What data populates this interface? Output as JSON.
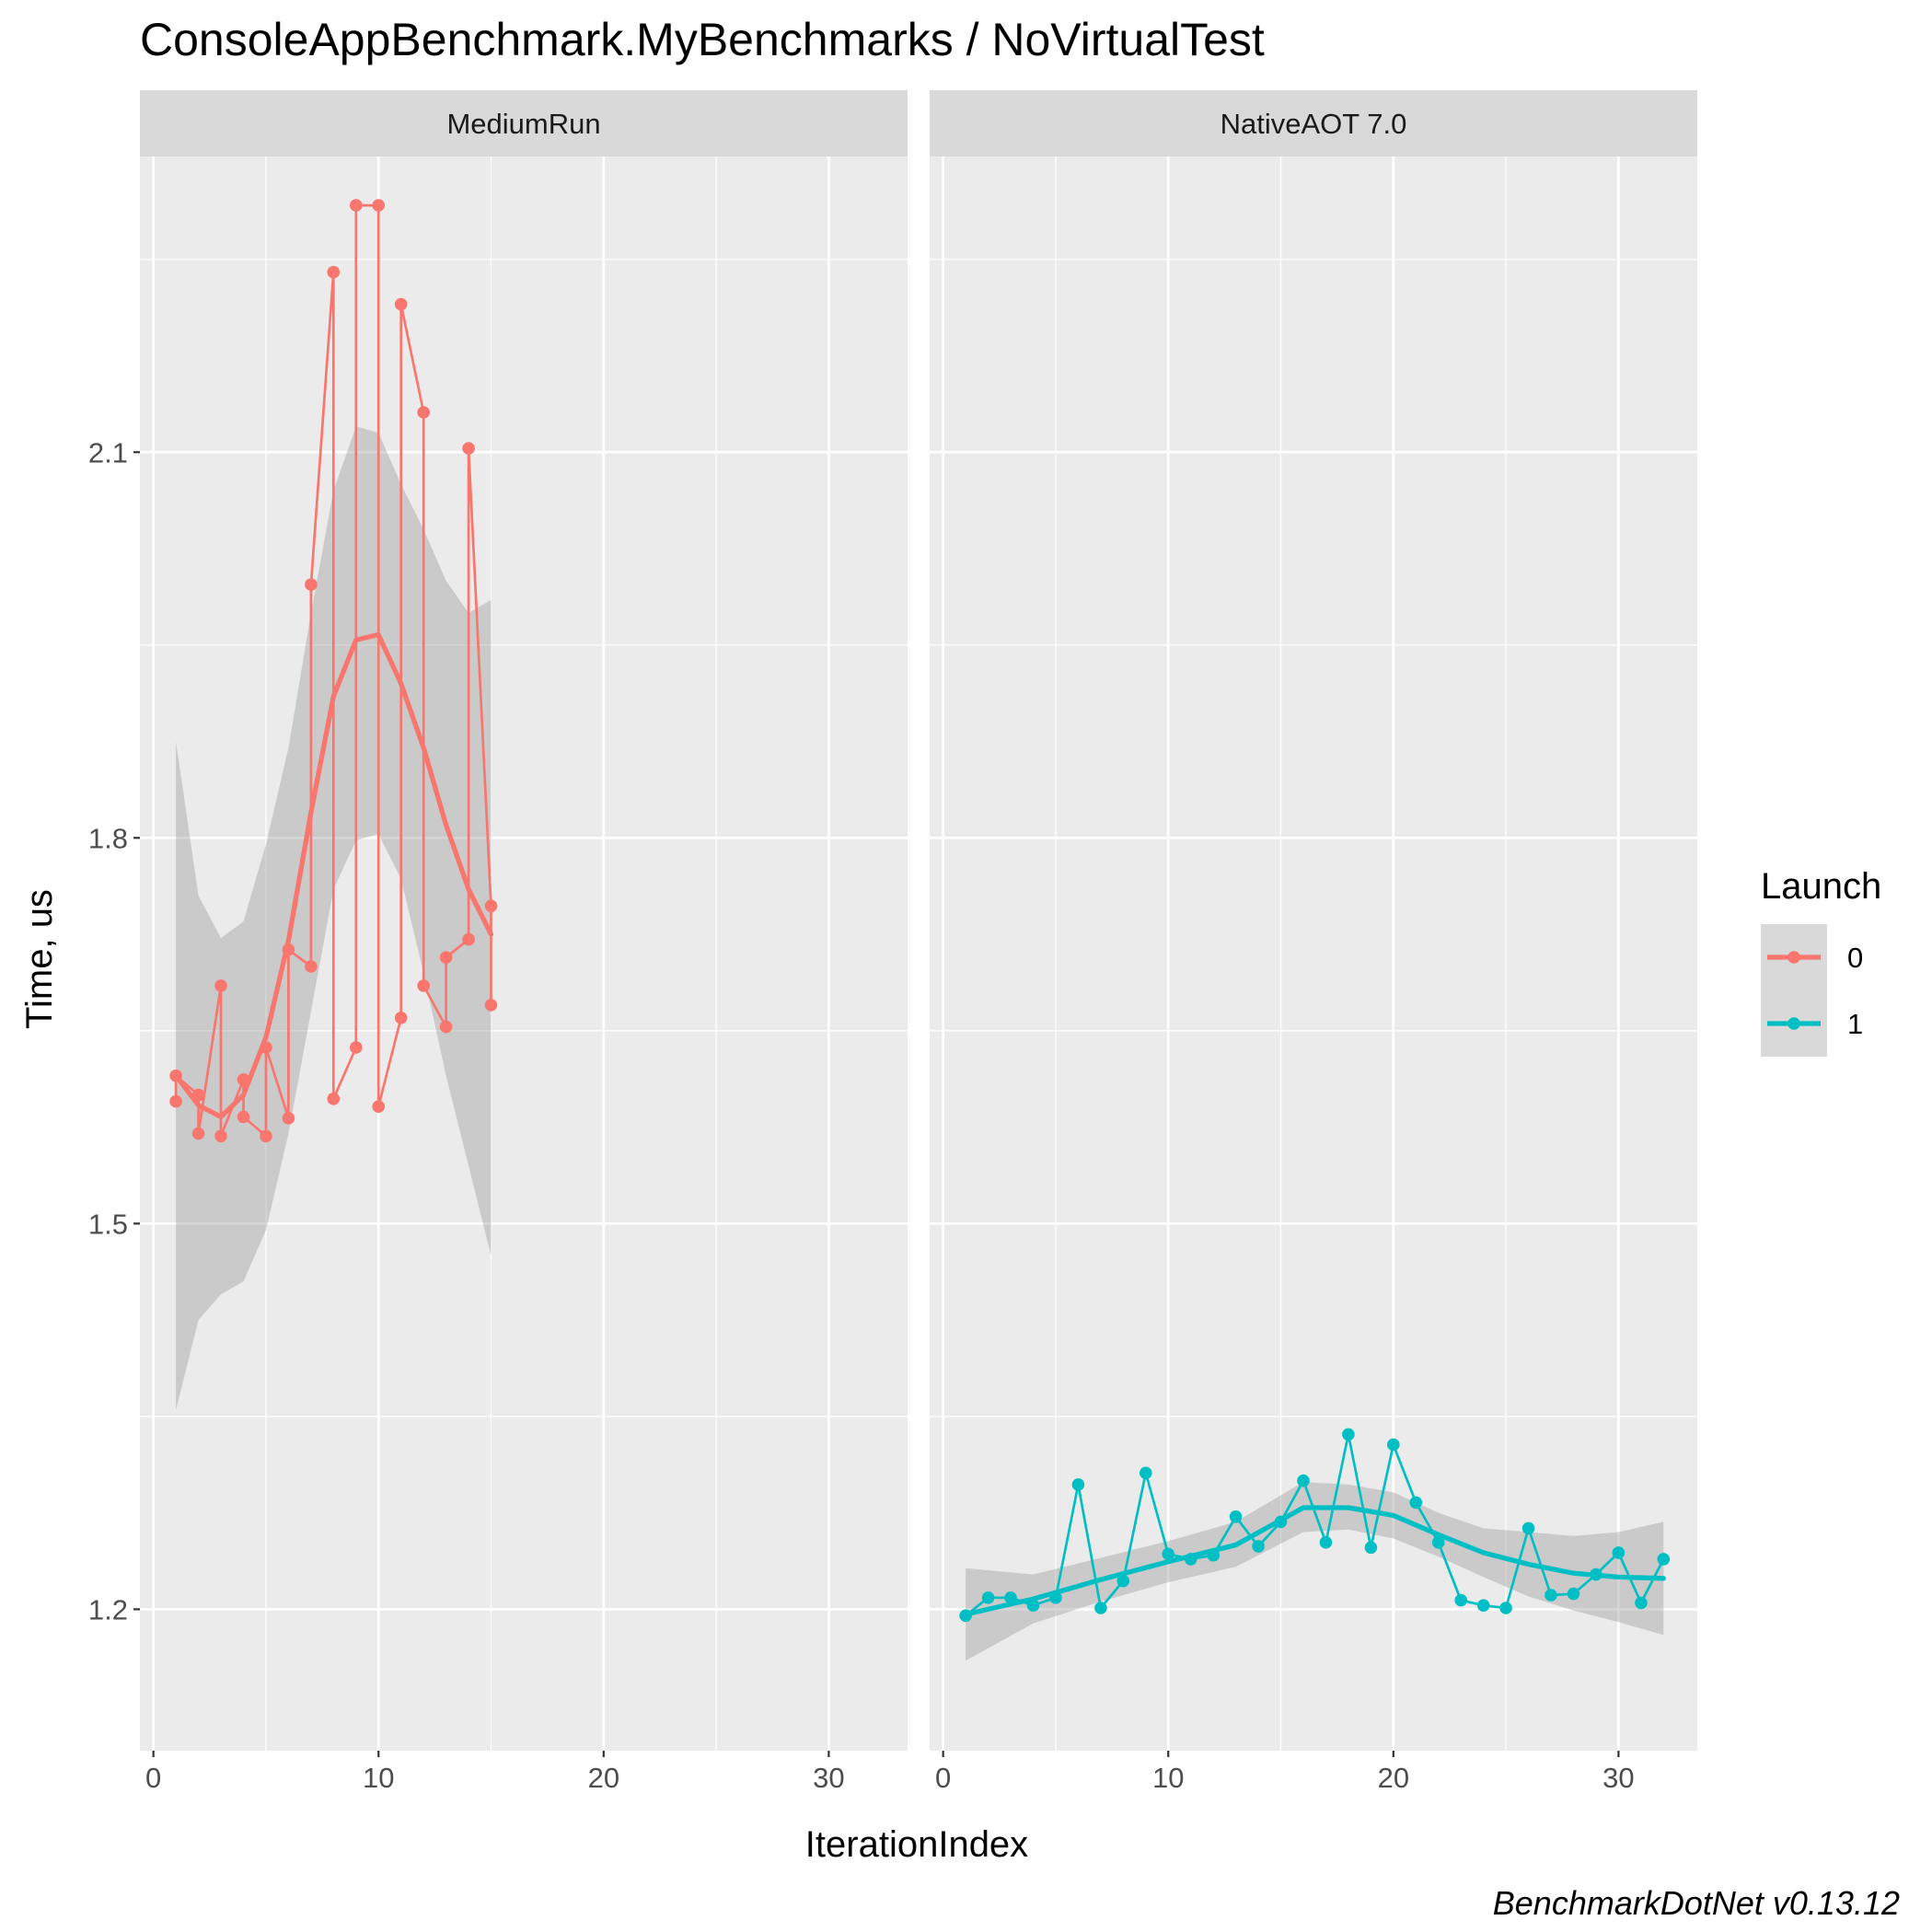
{
  "chart_data": {
    "type": "line",
    "title": "ConsoleAppBenchmark.MyBenchmarks / NoVirtualTest",
    "xlabel": "IterationIndex",
    "ylabel": "Time, us",
    "caption": "BenchmarkDotNet v0.13.12",
    "xlim": [
      -0.6,
      33.5
    ],
    "ylim": [
      1.09,
      2.33
    ],
    "x_ticks": [
      0,
      10,
      20,
      30
    ],
    "x_tick_labels": [
      "0",
      "10",
      "20",
      "30"
    ],
    "y_ticks": [
      1.2,
      1.5,
      1.8,
      2.1
    ],
    "y_tick_labels": [
      "1.2",
      "1.5",
      "1.8",
      "2.1"
    ],
    "grid": true,
    "legend": {
      "title": "Launch",
      "position": "right",
      "entries": [
        {
          "label": "0",
          "color": "#F8766D"
        },
        {
          "label": "1",
          "color": "#00BFC4"
        }
      ]
    },
    "panels": [
      {
        "strip": "MediumRun",
        "series": [
          {
            "launch": "0",
            "color": "#F8766D",
            "x": [
              1,
              1,
              2,
              2,
              3,
              3,
              4,
              4,
              5,
              5,
              6,
              6,
              7,
              7,
              8,
              8,
              9,
              9,
              10,
              10,
              11,
              11,
              12,
              12,
              13,
              13,
              14,
              14,
              15,
              15
            ],
            "y": [
              1.595,
              1.615,
              1.6,
              1.57,
              1.685,
              1.568,
              1.612,
              1.583,
              1.568,
              1.637,
              1.582,
              1.713,
              1.7,
              1.997,
              2.24,
              1.597,
              1.637,
              2.292,
              2.292,
              1.591,
              1.66,
              2.215,
              2.131,
              1.685,
              1.653,
              1.707,
              1.721,
              2.103,
              1.747,
              1.67
            ],
            "smooth_x": [
              1,
              2,
              3,
              4,
              5,
              6,
              7,
              8,
              9,
              10,
              11,
              12,
              13,
              14,
              15
            ],
            "smooth_y": [
              1.615,
              1.592,
              1.583,
              1.6,
              1.645,
              1.72,
              1.82,
              1.91,
              1.954,
              1.958,
              1.92,
              1.87,
              1.81,
              1.76,
              1.725
            ],
            "band_lower": [
              1.355,
              1.425,
              1.445,
              1.455,
              1.495,
              1.57,
              1.665,
              1.76,
              1.798,
              1.803,
              1.768,
              1.695,
              1.615,
              1.545,
              1.475
            ],
            "band_upper": [
              1.875,
              1.755,
              1.722,
              1.735,
              1.795,
              1.87,
              1.975,
              2.07,
              2.12,
              2.115,
              2.075,
              2.04,
              2.0,
              1.975,
              1.985
            ]
          }
        ]
      },
      {
        "strip": "NativeAOT 7.0",
        "series": [
          {
            "launch": "1",
            "color": "#00BFC4",
            "x": [
              1,
              2,
              3,
              4,
              5,
              6,
              7,
              8,
              9,
              10,
              11,
              12,
              13,
              14,
              15,
              16,
              17,
              18,
              19,
              20,
              21,
              22,
              23,
              24,
              25,
              26,
              27,
              28,
              29,
              30,
              31,
              32
            ],
            "y": [
              1.195,
              1.209,
              1.209,
              1.203,
              1.209,
              1.297,
              1.201,
              1.222,
              1.306,
              1.243,
              1.239,
              1.242,
              1.272,
              1.249,
              1.268,
              1.3,
              1.252,
              1.336,
              1.248,
              1.328,
              1.283,
              1.252,
              1.207,
              1.203,
              1.201,
              1.263,
              1.211,
              1.212,
              1.227,
              1.244,
              1.205,
              1.239
            ],
            "smooth_x": [
              1,
              4,
              7,
              10,
              13,
              16,
              18,
              20,
              22,
              24,
              26,
              28,
              30,
              32
            ],
            "smooth_y": [
              1.196,
              1.208,
              1.223,
              1.237,
              1.25,
              1.279,
              1.279,
              1.273,
              1.258,
              1.244,
              1.235,
              1.228,
              1.225,
              1.224
            ],
            "band_lower": [
              1.16,
              1.189,
              1.206,
              1.221,
              1.233,
              1.26,
              1.262,
              1.255,
              1.241,
              1.225,
              1.21,
              1.199,
              1.19,
              1.18
            ],
            "band_upper": [
              1.232,
              1.227,
              1.24,
              1.253,
              1.268,
              1.299,
              1.297,
              1.291,
              1.275,
              1.263,
              1.26,
              1.257,
              1.26,
              1.268
            ]
          }
        ]
      }
    ]
  }
}
